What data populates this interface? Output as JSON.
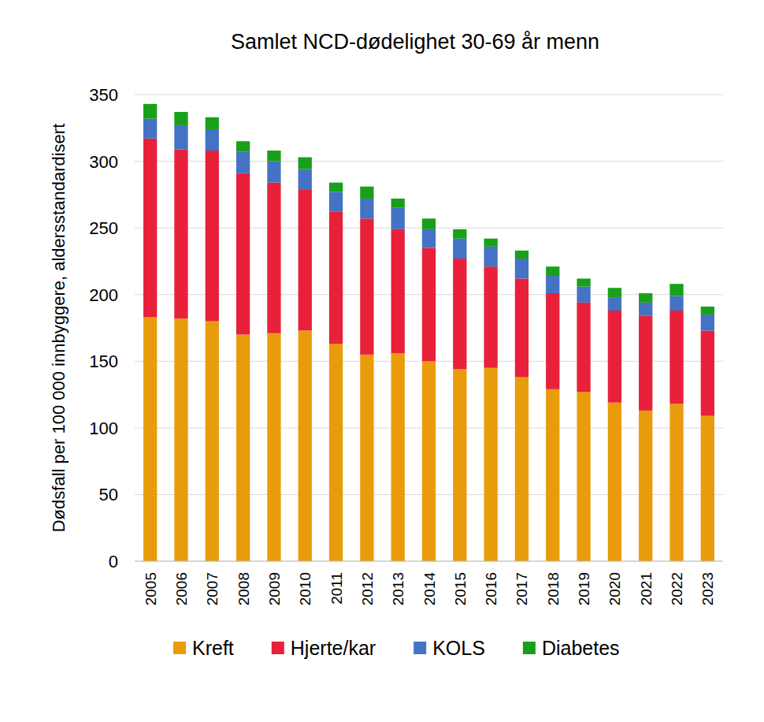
{
  "chart_data": {
    "type": "bar",
    "stacked": true,
    "title": "Samlet NCD-dødelighet 30-69 år menn",
    "y_label": "Dødsfall per 100 000 innbyggere, aldersstandardisert",
    "categories": [
      "2005",
      "2006",
      "2007",
      "2008",
      "2009",
      "2010",
      "2011",
      "2012",
      "2013",
      "2014",
      "2015",
      "2016",
      "2017",
      "2018",
      "2019",
      "2020",
      "2021",
      "2022",
      "2023"
    ],
    "series": [
      {
        "name": "Kreft",
        "color": "#e99c0b",
        "values": [
          183,
          182,
          180,
          170,
          171,
          173,
          163,
          155,
          156,
          150,
          144,
          145,
          138,
          129,
          127,
          119,
          113,
          118,
          109
        ]
      },
      {
        "name": "Hjerte/kar",
        "color": "#e8203a",
        "values": [
          134,
          127,
          128,
          121,
          113,
          106,
          99,
          102,
          93,
          85,
          83,
          76,
          74,
          72,
          67,
          69,
          71,
          70,
          64
        ]
      },
      {
        "name": "KOLS",
        "color": "#4472c4",
        "values": [
          15,
          18,
          16,
          16,
          16,
          15,
          15,
          15,
          16,
          14,
          15,
          15,
          15,
          13,
          12,
          10,
          10,
          11,
          12
        ]
      },
      {
        "name": "Diabetes",
        "color": "#18a018",
        "values": [
          11,
          10,
          9,
          8,
          8,
          9,
          7,
          9,
          7,
          8,
          7,
          6,
          6,
          7,
          6,
          7,
          7,
          9,
          6
        ]
      }
    ],
    "ylim": [
      0,
      350
    ],
    "yticks": [
      0,
      50,
      100,
      150,
      200,
      250,
      300,
      350
    ],
    "grid": true,
    "legend": "bottom"
  }
}
